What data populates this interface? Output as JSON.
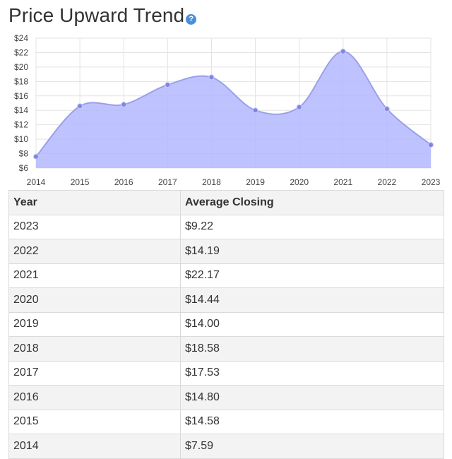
{
  "header": {
    "title": "Price Upward Trend",
    "help_icon": "?"
  },
  "colors": {
    "area_fill": "#b3b8ff",
    "line": "#9aa0e8",
    "point": "#7f86e0",
    "grid": "#e3e3e3"
  },
  "chart_data": {
    "type": "area",
    "x": [
      "2014",
      "2015",
      "2016",
      "2017",
      "2018",
      "2019",
      "2020",
      "2021",
      "2022",
      "2023"
    ],
    "y": [
      7.59,
      14.58,
      14.8,
      17.53,
      18.58,
      14.0,
      14.44,
      22.17,
      14.19,
      9.22
    ],
    "ylim": [
      6,
      24
    ],
    "yticks": [
      6,
      8,
      10,
      12,
      14,
      16,
      18,
      20,
      22,
      24
    ],
    "ytick_labels": [
      "$6",
      "$8",
      "$10",
      "$12",
      "$14",
      "$16",
      "$18",
      "$20",
      "$22",
      "$24"
    ],
    "grid": true,
    "smooth": true
  },
  "table": {
    "headers": [
      "Year",
      "Average Closing"
    ],
    "rows": [
      [
        "2023",
        "$9.22"
      ],
      [
        "2022",
        "$14.19"
      ],
      [
        "2021",
        "$22.17"
      ],
      [
        "2020",
        "$14.44"
      ],
      [
        "2019",
        "$14.00"
      ],
      [
        "2018",
        "$18.58"
      ],
      [
        "2017",
        "$17.53"
      ],
      [
        "2016",
        "$14.80"
      ],
      [
        "2015",
        "$14.58"
      ],
      [
        "2014",
        "$7.59"
      ]
    ]
  }
}
